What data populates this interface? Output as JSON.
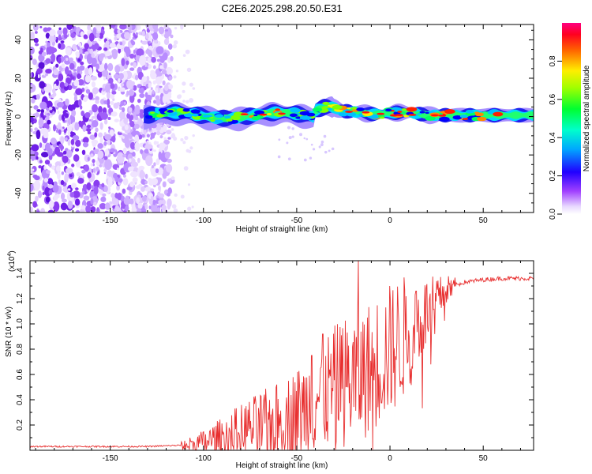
{
  "figure_title": "C2E6.2025.298.20.50.E31",
  "chart_data": [
    {
      "type": "heatmap",
      "title": "",
      "xlabel": "Height of straight line (km)",
      "ylabel": "Frequency (Hz)",
      "xlim": [
        -193,
        77
      ],
      "ylim": [
        -50,
        48
      ],
      "xticks": [
        -150,
        -100,
        -50,
        0,
        50
      ],
      "yticks": [
        -40,
        -20,
        0,
        20,
        40
      ],
      "colorbar": {
        "label": "Normalized spectral amplitude",
        "range": [
          0,
          1
        ],
        "ticks": [
          0.0,
          0.2,
          0.4,
          0.6,
          0.8
        ],
        "tick_labels": [
          "0.0",
          "0.2",
          "0.4",
          "0.6",
          "0.8"
        ],
        "colormap": [
          "#ffffff",
          "#ccaaff",
          "#8800ff",
          "#0000ff",
          "#00ccff",
          "#00ff66",
          "#66ff00",
          "#ffff00",
          "#ff8800",
          "#ff0000",
          "#ff0066"
        ]
      },
      "description_features": {
        "noise_region_x": [
          -193,
          -117
        ],
        "band_start_x": -132,
        "band_center_hz": 0
      }
    },
    {
      "type": "line",
      "title": "",
      "xlabel": "Height of straight line (km)",
      "ylabel": "SNR (10 * v/v)",
      "y_multiplier_label": "(x10",
      "y_multiplier_exp": "4",
      "y_multiplier_close": ")",
      "xlim": [
        -193,
        77
      ],
      "ylim": [
        0,
        1.5
      ],
      "xticks": [
        -150,
        -100,
        -50,
        0,
        50
      ],
      "yticks": [
        0.2,
        0.4,
        0.6,
        0.8,
        1.0,
        1.2,
        1.4
      ],
      "ytick_labels": [
        "0.2",
        "0.4",
        "0.6",
        "0.8",
        "1.0",
        "1.2",
        "1.4"
      ],
      "series": [
        {
          "name": "SNR",
          "color": "#e83030",
          "envelope_x": [
            -193,
            -130,
            -112,
            -100,
            -90,
            -80,
            -70,
            -60,
            -50,
            -40,
            -30,
            -20,
            -17,
            -10,
            0,
            10,
            20,
            30,
            40,
            50,
            60,
            77
          ],
          "envelope_y": [
            0.03,
            0.03,
            0.04,
            0.07,
            0.12,
            0.18,
            0.22,
            0.25,
            0.32,
            0.45,
            0.55,
            0.62,
            0.62,
            0.72,
            0.85,
            0.98,
            1.12,
            1.28,
            1.33,
            1.35,
            1.36,
            1.36
          ],
          "spikes": [
            {
              "x": -17,
              "y": 1.5
            },
            {
              "x": -42,
              "y": 0.75
            },
            {
              "x": -36,
              "y": 0.92
            },
            {
              "x": -26,
              "y": 0.91
            },
            {
              "x": 8,
              "y": 1.27
            },
            {
              "x": 14,
              "y": 1.26
            }
          ]
        }
      ]
    }
  ]
}
